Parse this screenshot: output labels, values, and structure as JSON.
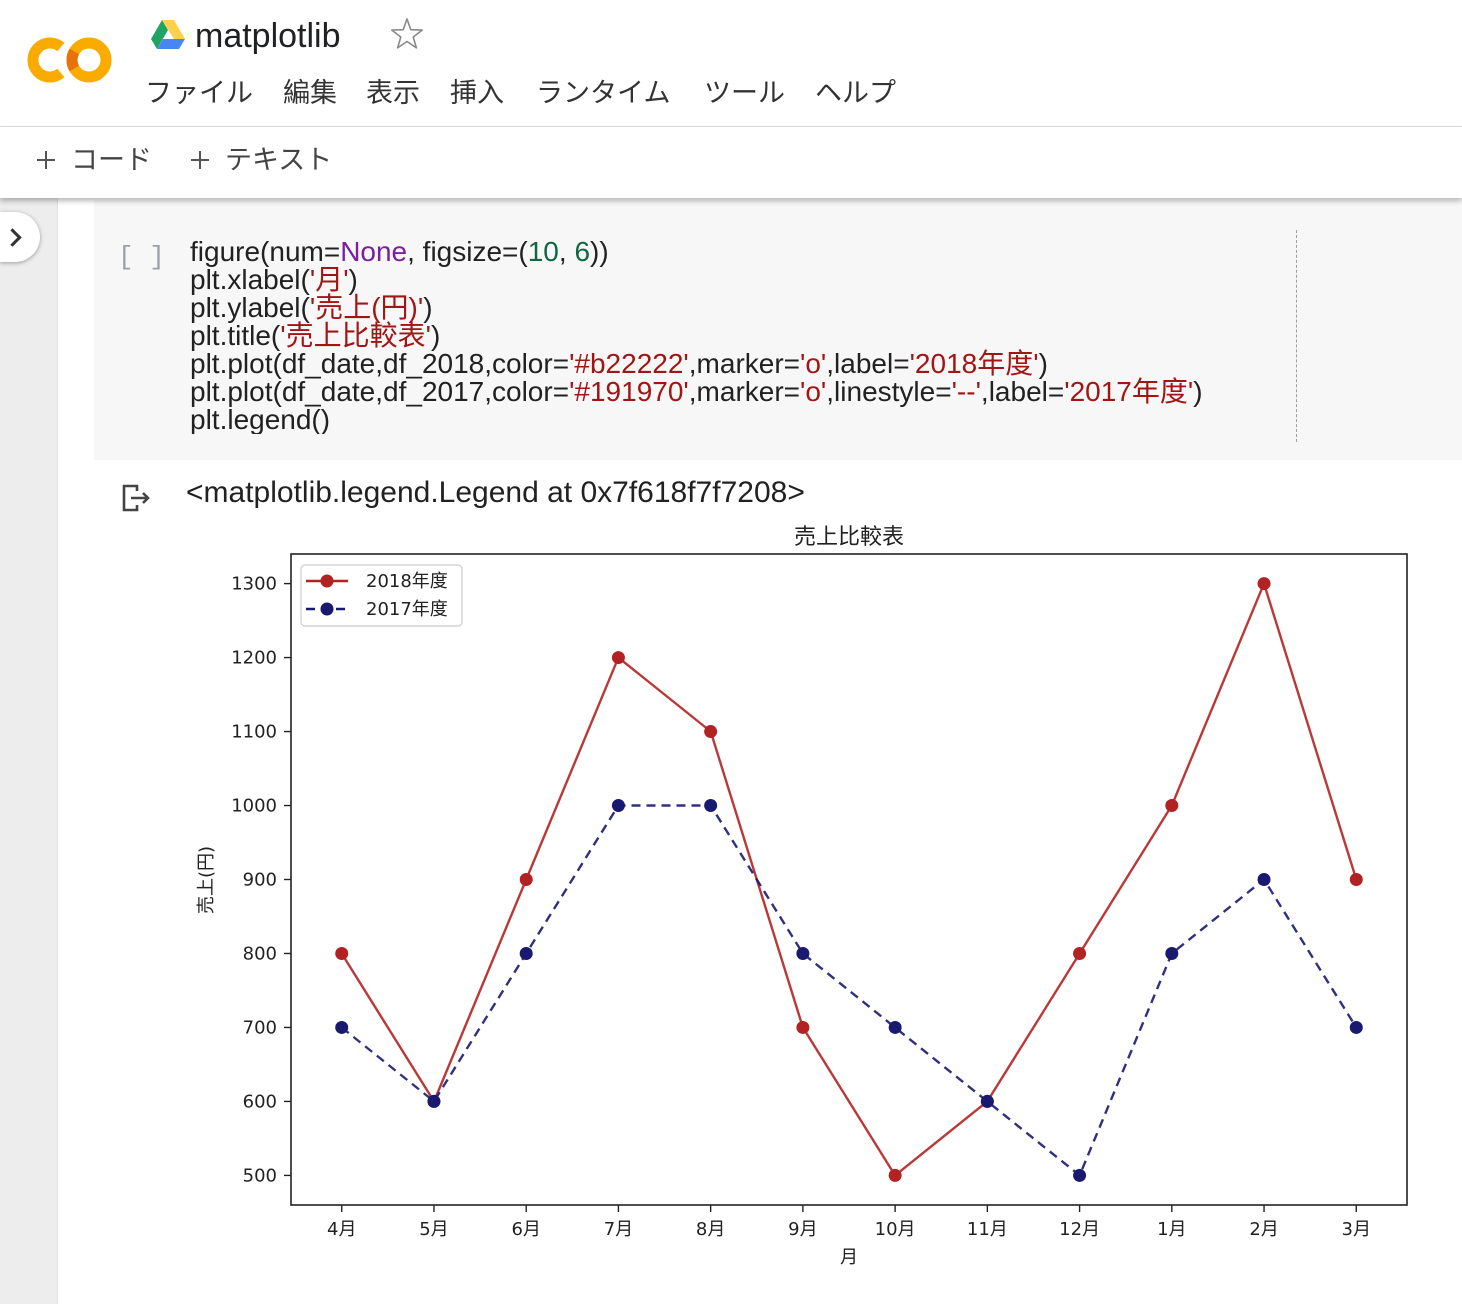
{
  "header": {
    "logo": "colab-logo",
    "drive_icon": "google-drive-icon",
    "notebook_title": "matplotlib",
    "star_icon": "star-outline-icon"
  },
  "menu": {
    "items": [
      "ファイル",
      "編集",
      "表示",
      "挿入",
      "ランタイム",
      "ツール",
      "ヘルプ"
    ]
  },
  "toolbar": {
    "plus_icon": "plus-icon",
    "add_code_label": "コード",
    "add_text_label": "テキスト"
  },
  "sidebar": {
    "toggle_icon": "chevron-right-icon"
  },
  "cell": {
    "run_indicator": "[ ]",
    "code_lines": [
      [
        {
          "text": "figure(num=",
          "color": "#212121"
        },
        {
          "text": "None",
          "color": "#7b1fa2"
        },
        {
          "text": ", figsize=(",
          "color": "#212121"
        },
        {
          "text": "10",
          "color": "#116644"
        },
        {
          "text": ", ",
          "color": "#212121"
        },
        {
          "text": "6",
          "color": "#116644"
        },
        {
          "text": "))",
          "color": "#212121"
        }
      ],
      [
        {
          "text": "plt.xlabel(",
          "color": "#212121"
        },
        {
          "text": "'月'",
          "color": "#a31515"
        },
        {
          "text": ")",
          "color": "#212121"
        }
      ],
      [
        {
          "text": "plt.ylabel(",
          "color": "#212121"
        },
        {
          "text": "'売上(円)'",
          "color": "#a31515"
        },
        {
          "text": ")",
          "color": "#212121"
        }
      ],
      [
        {
          "text": "plt.title(",
          "color": "#212121"
        },
        {
          "text": "'売上比較表'",
          "color": "#a31515"
        },
        {
          "text": ")",
          "color": "#212121"
        }
      ],
      [
        {
          "text": "plt.plot(df_date,df_2018,color=",
          "color": "#212121"
        },
        {
          "text": "'#b22222'",
          "color": "#a31515"
        },
        {
          "text": ",marker=",
          "color": "#212121"
        },
        {
          "text": "'o'",
          "color": "#a31515"
        },
        {
          "text": ",label=",
          "color": "#212121"
        },
        {
          "text": "'2018年度'",
          "color": "#a31515"
        },
        {
          "text": ")",
          "color": "#212121"
        }
      ],
      [
        {
          "text": "plt.plot(df_date,df_2017,color=",
          "color": "#212121"
        },
        {
          "text": "'#191970'",
          "color": "#a31515"
        },
        {
          "text": ",marker=",
          "color": "#212121"
        },
        {
          "text": "'o'",
          "color": "#a31515"
        },
        {
          "text": ",linestyle=",
          "color": "#212121"
        },
        {
          "text": "'--'",
          "color": "#a31515"
        },
        {
          "text": ",label=",
          "color": "#212121"
        },
        {
          "text": "'2017年度'",
          "color": "#a31515"
        },
        {
          "text": ")",
          "color": "#212121"
        }
      ],
      [
        {
          "text": "plt.legend()",
          "color": "#212121"
        }
      ]
    ]
  },
  "output": {
    "icon": "output-redirect-icon",
    "text": "<matplotlib.legend.Legend at 0x7f618f7f7208>"
  },
  "colors": {
    "logo_yellow": "#F9AB00",
    "logo_orange": "#E8710A",
    "drive_green": "#1FA463",
    "drive_yellow": "#FFD04B",
    "drive_blue": "#4687F4"
  },
  "chart_data": {
    "type": "line",
    "title": "売上比較表",
    "xlabel": "月",
    "ylabel": "売上(円)",
    "categories": [
      "4月",
      "5月",
      "6月",
      "7月",
      "8月",
      "9月",
      "10月",
      "11月",
      "12月",
      "1月",
      "2月",
      "3月"
    ],
    "yticks": [
      500,
      600,
      700,
      800,
      900,
      1000,
      1100,
      1200,
      1300
    ],
    "ylim": [
      460,
      1340
    ],
    "grid": false,
    "legend_position": "upper left",
    "series": [
      {
        "name": "2018年度",
        "color": "#b22222",
        "dashed": false,
        "markers": true,
        "values": [
          800,
          600,
          900,
          1200,
          1100,
          700,
          500,
          600,
          800,
          1000,
          1300,
          900
        ]
      },
      {
        "name": "2017年度",
        "color": "#191970",
        "dashed": true,
        "markers": true,
        "values": [
          700,
          600,
          800,
          1000,
          1000,
          800,
          700,
          600,
          500,
          800,
          900,
          700
        ]
      }
    ]
  }
}
